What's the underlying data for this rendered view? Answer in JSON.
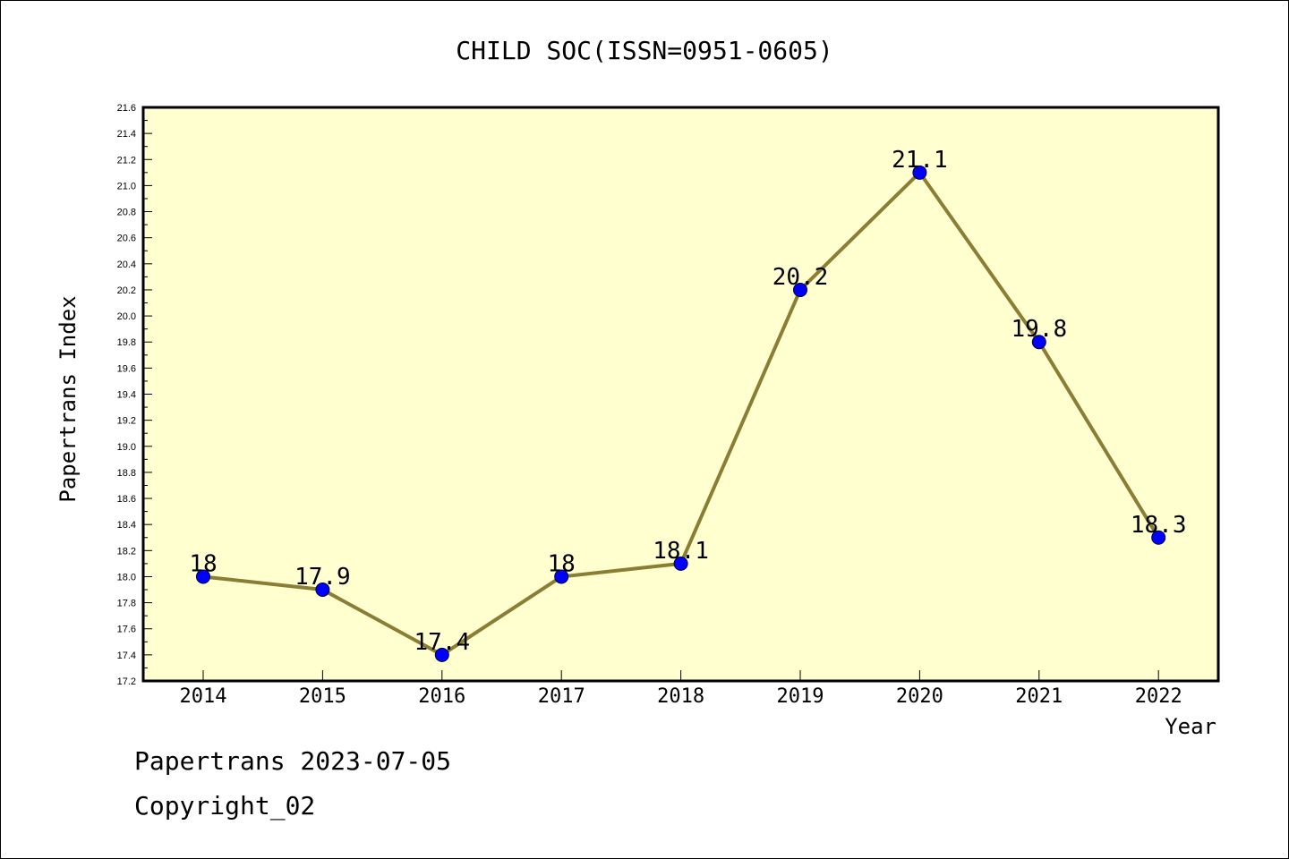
{
  "footer": {
    "line1": "Papertrans 2023-07-05",
    "line2": "Copyright_02"
  },
  "colors": {
    "plot_bg": "#ffffd0",
    "line": "#8b7d34",
    "marker": "#0000ff"
  },
  "chart_data": {
    "type": "line",
    "title": "CHILD SOC(ISSN=0951-0605)",
    "xlabel": "Year",
    "ylabel": "Papertrans Index",
    "categories": [
      "2014",
      "2015",
      "2016",
      "2017",
      "2018",
      "2019",
      "2020",
      "2021",
      "2022"
    ],
    "series": [
      {
        "values": [
          18,
          17.9,
          17.4,
          18,
          18.1,
          20.2,
          21.1,
          19.8,
          18.3
        ],
        "labels": [
          "18",
          "17.9",
          "17.4",
          "18",
          "18.1",
          "20.2",
          "21.1",
          "19.8",
          "18.3"
        ]
      }
    ],
    "ylim": [
      17.2,
      21.6
    ],
    "yticks": [
      "17.2",
      "17.4",
      "17.6",
      "17.8",
      "18.0",
      "18.2",
      "18.4",
      "18.6",
      "18.8",
      "19.0",
      "19.2",
      "19.4",
      "19.6",
      "19.8",
      "20.0",
      "20.2",
      "20.4",
      "20.6",
      "20.8",
      "21.0",
      "21.2",
      "21.4",
      "21.6"
    ],
    "grid": false,
    "legend": "none"
  }
}
